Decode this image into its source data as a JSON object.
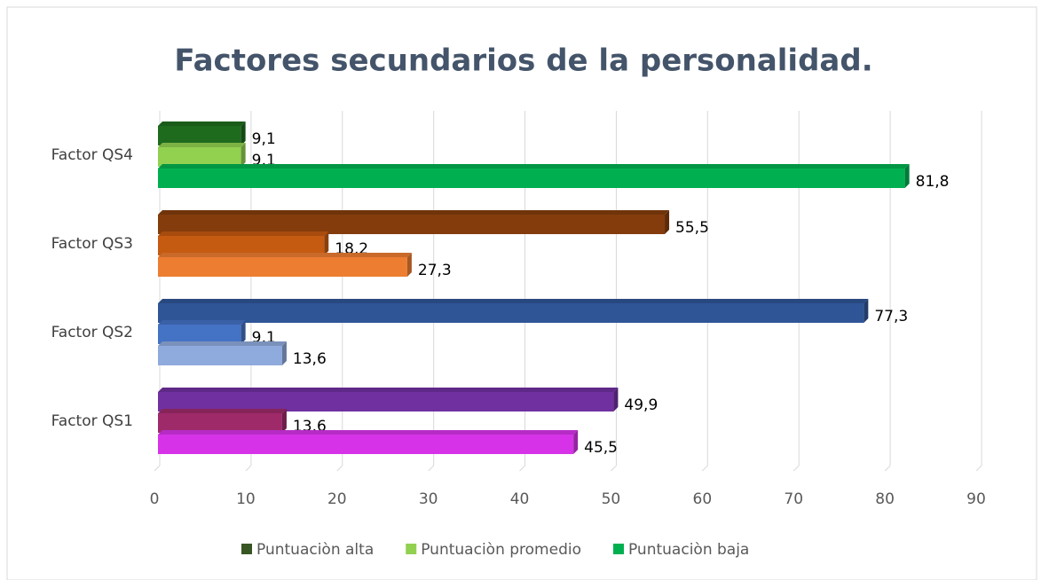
{
  "chart_data": {
    "type": "bar",
    "orientation": "horizontal",
    "title": "Factores secundarios de la personalidad.",
    "categories": [
      "Factor QS1",
      "Factor QS2",
      "Factor QS3",
      "Factor QS4"
    ],
    "series": [
      {
        "name": "Puntuaciòn alta",
        "color": "#375623",
        "colors": [
          "#7030a0",
          "#2f5597",
          "#843c0c",
          "#1e6b1e"
        ],
        "values": [
          49.9,
          77.3,
          55.5,
          9.1
        ],
        "value_labels": [
          "49,9",
          "77,3",
          "55,5",
          "9,1"
        ]
      },
      {
        "name": "Puntuaciòn promedio",
        "color": "#92d050",
        "colors": [
          "#9e2a6a",
          "#4472c4",
          "#c55a11",
          "#92d050"
        ],
        "values": [
          13.6,
          9.1,
          18.2,
          9.1
        ],
        "value_labels": [
          "13,6",
          "9,1",
          "18,2",
          "9,1"
        ]
      },
      {
        "name": "Puntuaciòn baja",
        "color": "#00b050",
        "colors": [
          "#d633e8",
          "#8faadc",
          "#ed7d31",
          "#00b050"
        ],
        "values": [
          45.5,
          13.6,
          27.3,
          81.8
        ],
        "value_labels": [
          "45,5",
          "13,6",
          "27,3",
          "81,8"
        ]
      }
    ],
    "xlim": [
      0,
      90
    ],
    "xticks": [
      0,
      10,
      20,
      30,
      40,
      50,
      60,
      70,
      80,
      90
    ],
    "grid": true,
    "legend": "bottom"
  }
}
